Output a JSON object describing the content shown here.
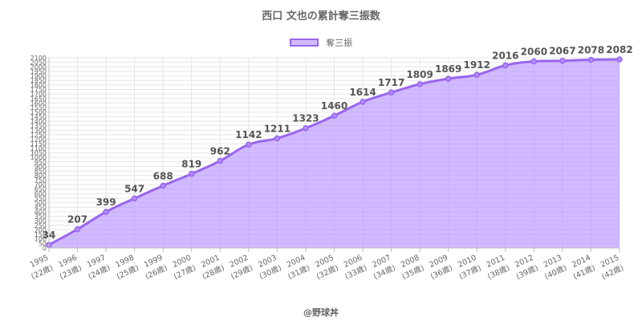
{
  "title": "西口 文也の累計奪三振数",
  "credit": "@野球丼",
  "chart_data": {
    "type": "area",
    "title": "西口 文也の累計奪三振数",
    "series": [
      {
        "name": "奪三振",
        "values": [
          34,
          207,
          399,
          547,
          688,
          819,
          962,
          1142,
          1211,
          1323,
          1460,
          1614,
          1717,
          1809,
          1869,
          1912,
          2016,
          2060,
          2067,
          2078,
          2082
        ],
        "color": "#9966ee",
        "fill": "#b28cff"
      }
    ],
    "x": [
      "1995",
      "1996",
      "1997",
      "1998",
      "1999",
      "2000",
      "2001",
      "2002",
      "2003",
      "2004",
      "2005",
      "2006",
      "2007",
      "2008",
      "2009",
      "2010",
      "2011",
      "2012",
      "2013",
      "2014",
      "2015"
    ],
    "x_sublabels": [
      "(22歳)",
      "(23歳)",
      "(24歳)",
      "(25歳)",
      "(26歳)",
      "(27歳)",
      "(28歳)",
      "(29歳)",
      "(30歳)",
      "(31歳)",
      "(32歳)",
      "(33歳)",
      "(34歳)",
      "(35歳)",
      "(36歳)",
      "(37歳)",
      "(38歳)",
      "(39歳)",
      "(40歳)",
      "(41歳)",
      "(42歳)"
    ],
    "ylim": [
      0,
      2100
    ],
    "ytick_step": 50,
    "grid": true,
    "legend": "top"
  }
}
